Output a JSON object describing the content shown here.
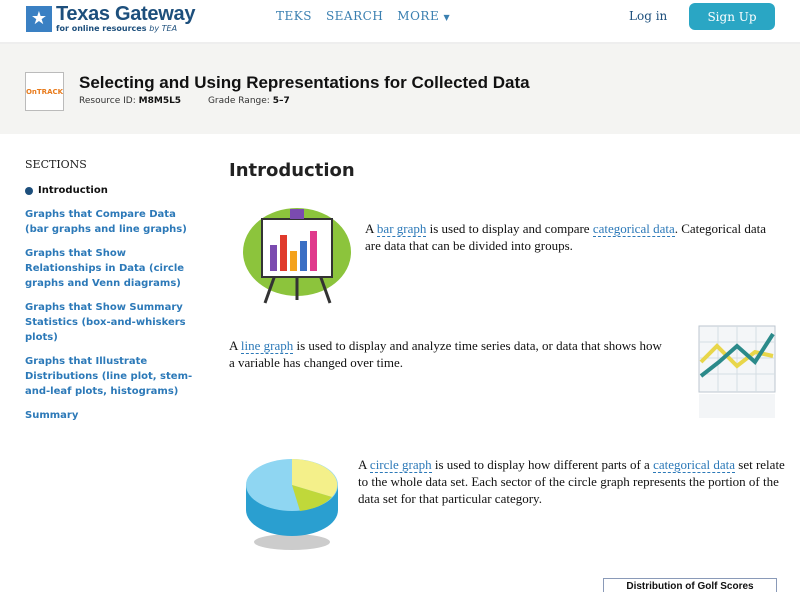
{
  "header": {
    "logo_title": "Texas Gateway",
    "logo_subtitle": "for online resources",
    "logo_by": "by TEA",
    "nav": [
      "TEKS",
      "SEARCH",
      "MORE"
    ],
    "login": "Log in",
    "signup": "Sign Up"
  },
  "resource": {
    "badge": "OnTRACK",
    "title": "Selecting and Using Representations for Collected Data",
    "id_label": "Resource ID:",
    "id": "M8M5L5",
    "grade_label": "Grade Range:",
    "grade": "5–7"
  },
  "sidebar": {
    "heading": "SECTIONS",
    "items": [
      "Introduction",
      "Graphs that Compare Data (bar graphs and line graphs)",
      "Graphs that Show Relationships in Data (circle graphs and Venn diagrams)",
      "Graphs that Show Summary Statistics (box-and-whiskers plots)",
      "Graphs that Illustrate Distributions (line plot, stem-and-leaf plots, histograms)",
      "Summary"
    ]
  },
  "main": {
    "heading": "Introduction",
    "p1": {
      "a": "A ",
      "l1": "bar graph",
      "b": " is used to display and compare ",
      "l2": "categorical data",
      "c": ". Categorical data are data that can be divided into groups."
    },
    "p2": {
      "a": "A ",
      "l1": "line graph",
      "b": " is used to display and analyze time series data, or data that shows how a variable has changed over time."
    },
    "p3": {
      "a": "A ",
      "l1": "circle graph",
      "b": " is used to display how different parts of a ",
      "l2": "categorical data",
      "c": " set relate to the whole data set. Each sector of the circle graph represents the portion of the data set for that particular category."
    },
    "figure_title": "Distribution of Golf Scores"
  },
  "colors": {
    "accent": "#2aa6c4",
    "link": "#2c79b8",
    "navy": "#1d4f7c"
  }
}
